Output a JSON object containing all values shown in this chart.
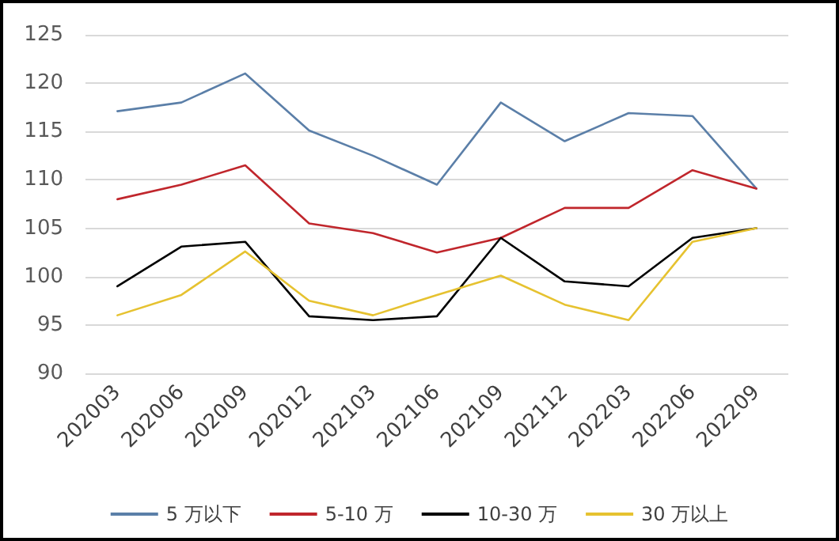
{
  "chart_data": {
    "type": "line",
    "categories": [
      "202003",
      "202006",
      "202009",
      "202012",
      "202103",
      "202106",
      "202109",
      "202112",
      "202203",
      "202206",
      "202209"
    ],
    "series": [
      {
        "name": "5 万以下",
        "color": "#5b7fa8",
        "values": [
          117.1,
          118.0,
          121.0,
          115.1,
          112.5,
          109.5,
          118.0,
          114.0,
          116.9,
          116.6,
          109.1
        ]
      },
      {
        "name": "5-10 万",
        "color": "#c0262c",
        "values": [
          108.0,
          109.5,
          111.5,
          105.5,
          104.5,
          102.5,
          104.0,
          107.1,
          107.1,
          111.0,
          109.1
        ]
      },
      {
        "name": "10-30 万",
        "color": "#000000",
        "values": [
          99.0,
          103.1,
          103.6,
          95.9,
          95.5,
          95.9,
          104.0,
          99.5,
          99.0,
          104.0,
          105.0
        ]
      },
      {
        "name": "30 万以上",
        "color": "#e6c230",
        "values": [
          96.0,
          98.1,
          102.6,
          97.5,
          96.0,
          98.1,
          100.1,
          97.1,
          95.5,
          103.6,
          105.0
        ]
      }
    ],
    "ylim": [
      90,
      125
    ],
    "yticks": [
      90,
      95,
      100,
      105,
      110,
      115,
      120,
      125
    ],
    "grid": "y",
    "legend": "bottom",
    "marker": "none",
    "line_style": "solid"
  }
}
